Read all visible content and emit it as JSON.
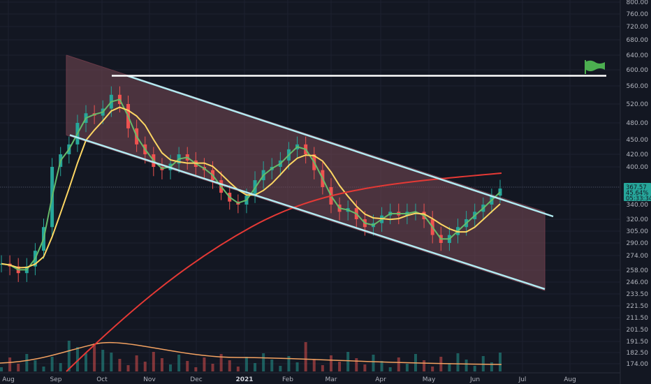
{
  "colors": {
    "background": "#131722",
    "grid": "#1e222d",
    "axis_text": "#b2b5be",
    "up_candle": "#26a69a",
    "down_candle": "#ef5350",
    "ma_fast": "#66bb6a",
    "ma_mid": "#fdd663",
    "ma_slow": "#e53935",
    "channel_line": "#b2ebf2",
    "channel_fill": "#7a4a55",
    "resistance_line": "#ffffff",
    "flag": "#4caf50",
    "price_tag": "#26a69a",
    "volume_ma": "#f4a261"
  },
  "chart_data": {
    "type": "candlestick",
    "y_axis": {
      "ticks": [
        "800.00",
        "760.00",
        "720.00",
        "680.00",
        "640.00",
        "600.00",
        "560.00",
        "520.00",
        "480.00",
        "450.00",
        "420.00",
        "400.00",
        "370.00",
        "340.00",
        "320.00",
        "305.00",
        "290.00",
        "274.00",
        "258.00",
        "246.00",
        "233.50",
        "221.50",
        "211.50",
        "201.50",
        "191.50",
        "182.50",
        "174.00"
      ],
      "scale": "log"
    },
    "x_axis": {
      "ticks": [
        "Aug",
        "Sep",
        "Oct",
        "Nov",
        "Dec",
        "2021",
        "Feb",
        "Mar",
        "Apr",
        "May",
        "Jun",
        "Jul",
        "Aug"
      ]
    },
    "last_price": {
      "price": "367.57",
      "change": "45.64%",
      "countdown": "05:33:34"
    },
    "price_path": [
      [
        0,
        265
      ],
      [
        2,
        262
      ],
      [
        4,
        255
      ],
      [
        5,
        262
      ],
      [
        6,
        280
      ],
      [
        7,
        310
      ],
      [
        8,
        400
      ],
      [
        9,
        420
      ],
      [
        10,
        440
      ],
      [
        11,
        480
      ],
      [
        12,
        500
      ],
      [
        13,
        495
      ],
      [
        14,
        510
      ],
      [
        15,
        540
      ],
      [
        16,
        520
      ],
      [
        17,
        470
      ],
      [
        18,
        440
      ],
      [
        19,
        420
      ],
      [
        20,
        400
      ],
      [
        21,
        395
      ],
      [
        22,
        405
      ],
      [
        23,
        420
      ],
      [
        24,
        410
      ],
      [
        25,
        400
      ],
      [
        26,
        395
      ],
      [
        27,
        380
      ],
      [
        28,
        360
      ],
      [
        29,
        345
      ],
      [
        30,
        340
      ],
      [
        31,
        355
      ],
      [
        32,
        380
      ],
      [
        33,
        395
      ],
      [
        34,
        400
      ],
      [
        35,
        410
      ],
      [
        36,
        430
      ],
      [
        37,
        440
      ],
      [
        38,
        420
      ],
      [
        39,
        395
      ],
      [
        40,
        370
      ],
      [
        41,
        340
      ],
      [
        42,
        330
      ],
      [
        43,
        335
      ],
      [
        44,
        320
      ],
      [
        45,
        310
      ],
      [
        46,
        315
      ],
      [
        47,
        325
      ],
      [
        48,
        330
      ],
      [
        49,
        325
      ],
      [
        50,
        330
      ],
      [
        51,
        330
      ],
      [
        52,
        320
      ],
      [
        53,
        300
      ],
      [
        54,
        290
      ],
      [
        55,
        300
      ],
      [
        56,
        310
      ],
      [
        57,
        320
      ],
      [
        58,
        330
      ],
      [
        59,
        340
      ],
      [
        60,
        355
      ],
      [
        61,
        367.57
      ]
    ],
    "channel": {
      "upper_start": [
        "Sep",
        640
      ],
      "upper_end": [
        "Jul",
        330
      ],
      "lower_start": [
        "Sep",
        458
      ],
      "lower_end": [
        "Jul",
        237
      ]
    },
    "resistance": 585
  }
}
